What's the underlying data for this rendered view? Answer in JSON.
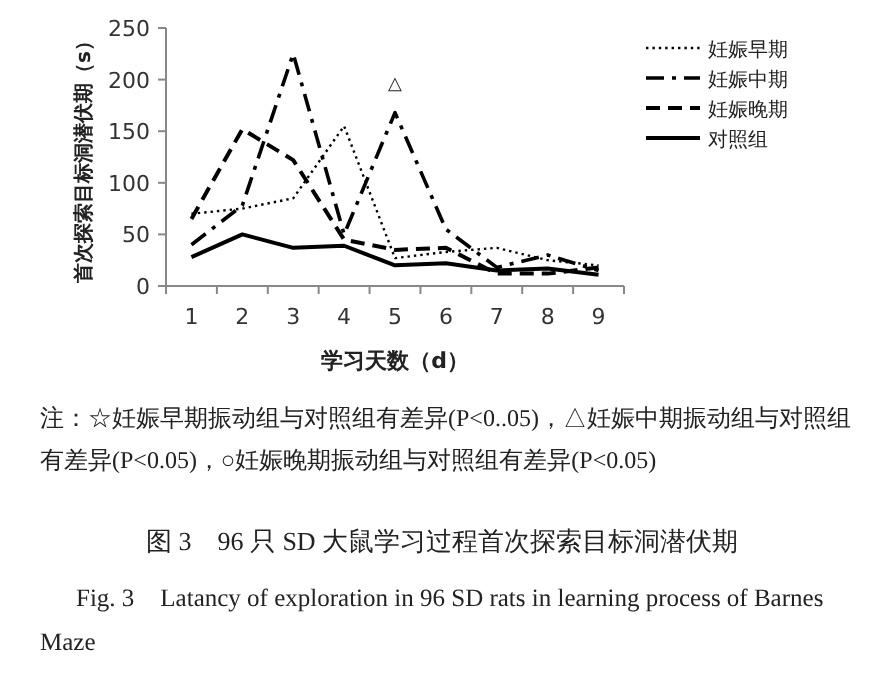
{
  "chart_data": {
    "type": "line",
    "ylabel": "首次探索目标洞潜伏期（s）",
    "xlabel": "学习天数（d）",
    "categories": [
      "1",
      "2",
      "3",
      "4",
      "5",
      "6",
      "7",
      "8",
      "9"
    ],
    "series": [
      {
        "name": "妊娠早期",
        "color": "#000000",
        "line_style": "dotted",
        "values": [
          70,
          75,
          85,
          155,
          27,
          33,
          37,
          25,
          20
        ]
      },
      {
        "name": "妊娠中期",
        "color": "#000000",
        "line_style": "dashdot",
        "values": [
          40,
          78,
          225,
          50,
          168,
          55,
          18,
          30,
          15
        ]
      },
      {
        "name": "妊娠晚期",
        "color": "#000000",
        "line_style": "dashed",
        "values": [
          65,
          152,
          122,
          45,
          35,
          37,
          12,
          12,
          18
        ]
      },
      {
        "name": "对照组",
        "color": "#000000",
        "line_style": "solid",
        "values": [
          28,
          50,
          37,
          39,
          20,
          22,
          15,
          17,
          11
        ]
      }
    ],
    "ylim": [
      0,
      250
    ],
    "yticks": [
      0,
      50,
      100,
      150,
      200,
      250
    ],
    "legend": "right",
    "annotations": [
      {
        "text": "△",
        "x": "5",
        "y": 168
      },
      "注：☆妊娠早期振动组与对照组有差异(P<0..05)，△妊娠中期振动组与对照组有差异(P<0.05)，○妊娠晚期振动组与对照组有差异(P<0.05)"
    ],
    "title": "图 3　96 只 SD 大鼠学习过程首次探索目标洞潜伏期",
    "subtitle": "Fig. 3　Latancy of exploration in 96 SD rats in learning process of Barnes Maze"
  }
}
